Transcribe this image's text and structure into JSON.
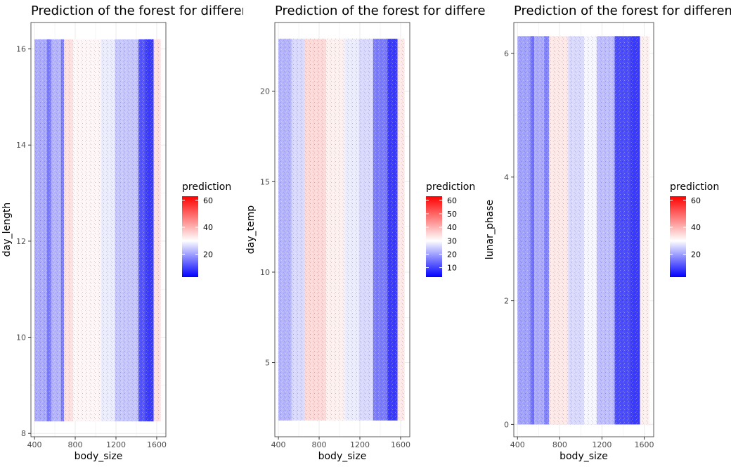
{
  "chart_data": [
    {
      "type": "heatmap",
      "title": "Prediction of the forest for different",
      "xlabel": "body_size",
      "ylabel": "day_length",
      "xlim": [
        365,
        1690
      ],
      "ylim": [
        7.93,
        16.55
      ],
      "x_ticks": [
        400,
        800,
        1200,
        1600
      ],
      "y_ticks": [
        8,
        10,
        12,
        14,
        16
      ],
      "data_x_range": [
        400,
        1640
      ],
      "data_y_range": [
        8.25,
        16.2
      ],
      "legend": {
        "title": "prediction",
        "range": [
          3,
          63
        ],
        "labels": [
          20,
          40,
          60
        ]
      },
      "color_scale": {
        "low": "#0000ff",
        "mid": "#ffffff",
        "high": "#ff0000",
        "midpoint": 30
      },
      "columns": [
        {
          "x0": 400,
          "x1": 520,
          "value": 21
        },
        {
          "x0": 520,
          "x1": 565,
          "value": 16
        },
        {
          "x0": 565,
          "x1": 660,
          "value": 22
        },
        {
          "x0": 660,
          "x1": 690,
          "value": 16
        },
        {
          "x0": 690,
          "x1": 780,
          "value": 34
        },
        {
          "x0": 780,
          "x1": 860,
          "value": 31
        },
        {
          "x0": 860,
          "x1": 1050,
          "value": 31
        },
        {
          "x0": 1050,
          "x1": 1190,
          "value": 28
        },
        {
          "x0": 1190,
          "x1": 1260,
          "value": 24
        },
        {
          "x0": 1260,
          "x1": 1420,
          "value": 24
        },
        {
          "x0": 1420,
          "x1": 1490,
          "value": 12
        },
        {
          "x0": 1490,
          "x1": 1570,
          "value": 9
        },
        {
          "x0": 1570,
          "x1": 1640,
          "value": 34
        }
      ],
      "grid": true
    },
    {
      "type": "heatmap",
      "title": "Prediction of the forest for different",
      "xlabel": "body_size",
      "ylabel": "day_temp",
      "xlim": [
        365,
        1690
      ],
      "ylim": [
        0.9,
        23.8
      ],
      "x_ticks": [
        400,
        800,
        1200,
        1600
      ],
      "y_ticks": [
        5,
        10,
        15,
        20
      ],
      "data_x_range": [
        400,
        1640
      ],
      "data_y_range": [
        1.8,
        22.9
      ],
      "legend": {
        "title": "prediction",
        "range": [
          3,
          63
        ],
        "labels": [
          10,
          20,
          30,
          40,
          50,
          60
        ]
      },
      "color_scale": {
        "low": "#0000ff",
        "mid": "#ffffff",
        "high": "#ff0000",
        "midpoint": 30
      },
      "columns": [
        {
          "x0": 400,
          "x1": 530,
          "value": 22
        },
        {
          "x0": 530,
          "x1": 660,
          "value": 26
        },
        {
          "x0": 660,
          "x1": 870,
          "value": 35
        },
        {
          "x0": 870,
          "x1": 1050,
          "value": 32
        },
        {
          "x0": 1050,
          "x1": 1190,
          "value": 28
        },
        {
          "x0": 1190,
          "x1": 1330,
          "value": 26
        },
        {
          "x0": 1330,
          "x1": 1470,
          "value": 16
        },
        {
          "x0": 1470,
          "x1": 1570,
          "value": 9
        },
        {
          "x0": 1570,
          "x1": 1640,
          "value": 33
        }
      ],
      "grid": true
    },
    {
      "type": "heatmap",
      "title": "Prediction of the forest for different",
      "xlabel": "body_size",
      "ylabel": "lunar_phase",
      "xlim": [
        365,
        1690
      ],
      "ylim": [
        -0.2,
        6.5
      ],
      "x_ticks": [
        400,
        800,
        1200,
        1600
      ],
      "y_ticks": [
        0,
        2,
        4,
        6
      ],
      "data_x_range": [
        400,
        1650
      ],
      "data_y_range": [
        0,
        6.28
      ],
      "legend": {
        "title": "prediction",
        "range": [
          3,
          63
        ],
        "labels": [
          20,
          40,
          60
        ]
      },
      "color_scale": {
        "low": "#0000ff",
        "mid": "#ffffff",
        "high": "#ff0000",
        "midpoint": 30
      },
      "columns": [
        {
          "x0": 400,
          "x1": 520,
          "value": 20
        },
        {
          "x0": 520,
          "x1": 560,
          "value": 15
        },
        {
          "x0": 560,
          "x1": 650,
          "value": 21
        },
        {
          "x0": 650,
          "x1": 700,
          "value": 17
        },
        {
          "x0": 700,
          "x1": 880,
          "value": 33
        },
        {
          "x0": 880,
          "x1": 1030,
          "value": 26
        },
        {
          "x0": 1030,
          "x1": 1150,
          "value": 29
        },
        {
          "x0": 1150,
          "x1": 1320,
          "value": 23
        },
        {
          "x0": 1320,
          "x1": 1470,
          "value": 11
        },
        {
          "x0": 1470,
          "x1": 1560,
          "value": 9
        },
        {
          "x0": 1560,
          "x1": 1650,
          "value": 32
        }
      ],
      "grid": true
    }
  ]
}
